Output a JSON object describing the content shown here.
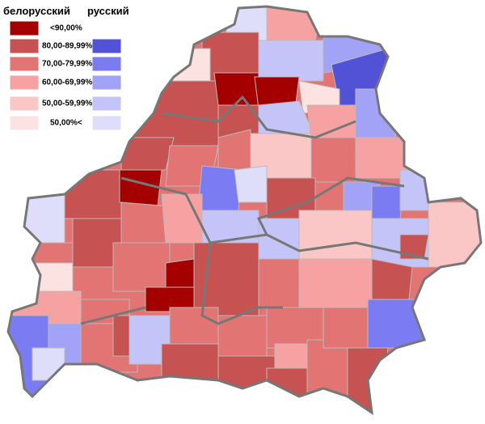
{
  "legend": {
    "headers": {
      "belarusian": "белорусский",
      "russian": "русский"
    },
    "rows": [
      "<90,00%",
      "80,00-89,99%",
      "70,00-79,99%",
      "60,00-69,99%",
      "50,00-59,99%",
      "50,00%<"
    ]
  }
}
